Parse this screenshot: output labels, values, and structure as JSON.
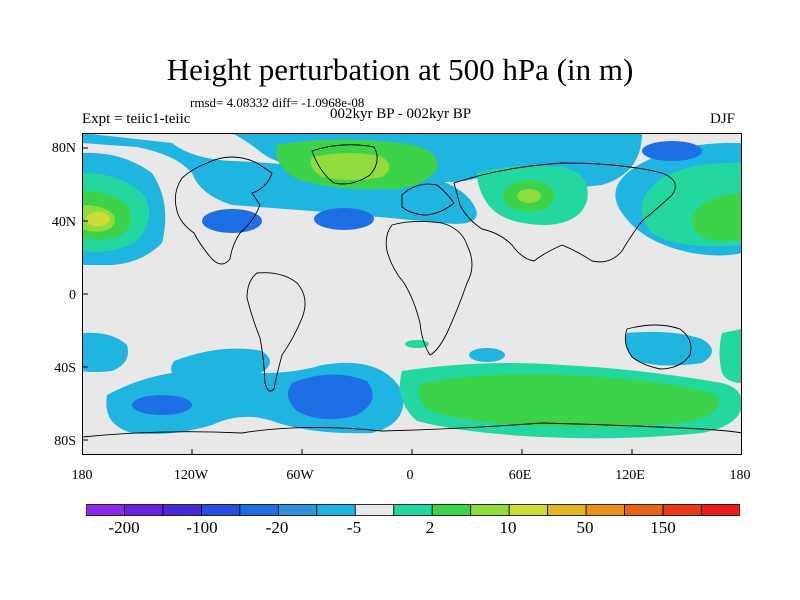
{
  "title": "Height perturbation at 500 hPa (in m)",
  "stats": "rmsd= 4.08332 diff= -1.0968e-08",
  "period": "002kyr BP - 002kyr BP",
  "experiment": "Expt = teiic1-teiic",
  "season": "DJF",
  "lat_labels": [
    "80N",
    "40N",
    "0",
    "40S",
    "80S"
  ],
  "lon_labels": [
    "180",
    "120W",
    "60W",
    "0",
    "60E",
    "120E",
    "180"
  ],
  "colorbar": {
    "colors": [
      "#8c2ae8",
      "#6a20d8",
      "#4a2ad6",
      "#2a4ce0",
      "#1e6fe6",
      "#2f92dc",
      "#20b4e0",
      "#e8e8e8",
      "#22d8a0",
      "#3cd24a",
      "#90dc3a",
      "#cedc36",
      "#e2b820",
      "#e89018",
      "#e86414",
      "#e83a14",
      "#e81c1c"
    ],
    "labels": [
      "-200",
      "-100",
      "-20",
      "-5",
      "2",
      "10",
      "50",
      "150"
    ]
  },
  "regions": {
    "neutral": "#e8e8e8",
    "light_blue": "#20b4e0",
    "mid_blue": "#1e6fe6",
    "teal": "#22d8a0",
    "green": "#3cd24a",
    "yellow_green": "#90dc3a",
    "yellow": "#cedc36"
  }
}
